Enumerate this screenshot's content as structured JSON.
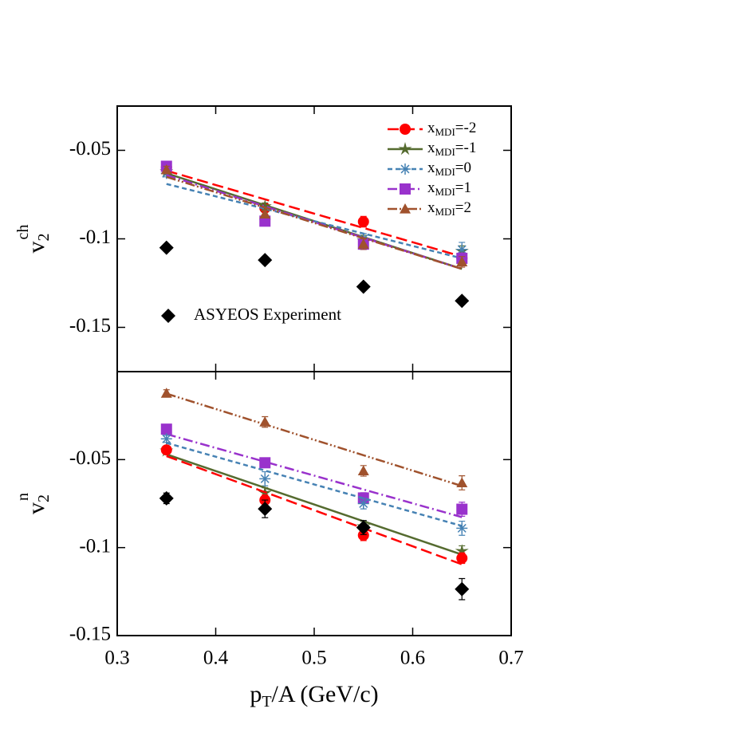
{
  "chart_data": [
    {
      "type": "scatter",
      "y_label": {
        "main": "v",
        "sub": "2",
        "sup": "ch"
      },
      "x": [
        0.35,
        0.45,
        0.55,
        0.65
      ],
      "fit_x": [
        0.35,
        0.65
      ],
      "xlim": [
        0.3,
        0.7
      ],
      "xticks": [
        0.3,
        0.4,
        0.5,
        0.6,
        0.7
      ],
      "ylim": [
        -0.175,
        -0.025
      ],
      "yticks": [
        -0.15,
        -0.1,
        -0.05
      ],
      "legend": "upper right",
      "series": [
        {
          "name": "xMDI=-2",
          "color": "#ff0000",
          "marker": "circle",
          "dash": "dashed",
          "values": [
            -0.0595,
            -0.0826,
            -0.0903,
            -0.111
          ],
          "errors": [
            0.002,
            0.002,
            0.003,
            0.003
          ],
          "fit": [
            -0.0615,
            -0.11
          ]
        },
        {
          "name": "xMDI=-1",
          "color": "#556b2f",
          "marker": "star",
          "dash": "solid",
          "values": [
            -0.062,
            -0.0817,
            -0.101,
            -0.107
          ],
          "errors": [
            0.002,
            0.002,
            0.003,
            0.003
          ],
          "fit": [
            -0.063,
            -0.117
          ]
        },
        {
          "name": "xMDI=0",
          "color": "#4682b4",
          "marker": "asterisk",
          "dash": "short",
          "values": [
            -0.063,
            -0.089,
            -0.1,
            -0.106
          ],
          "errors": [
            0.002,
            0.002,
            0.003,
            0.004
          ],
          "fit": [
            -0.069,
            -0.111
          ]
        },
        {
          "name": "xMDI=1",
          "color": "#9932cc",
          "marker": "square",
          "dash": "dashdot",
          "values": [
            -0.059,
            -0.09,
            -0.103,
            -0.111
          ],
          "errors": [
            0.002,
            0.002,
            0.003,
            0.003
          ],
          "fit": [
            -0.064,
            -0.117
          ]
        },
        {
          "name": "xMDI=2",
          "color": "#a0522d",
          "marker": "triangle",
          "dash": "dashdotdot",
          "values": [
            -0.061,
            -0.086,
            -0.103,
            -0.113
          ],
          "errors": [
            0.002,
            0.002,
            0.003,
            0.003
          ],
          "fit": [
            -0.065,
            -0.117
          ]
        },
        {
          "name": "ASYEOS Experiment",
          "color": "#000000",
          "marker": "diamond",
          "values": [
            -0.105,
            -0.112,
            -0.127,
            -0.135
          ],
          "errors": [
            0.002,
            0.002,
            0.002,
            0.002
          ]
        }
      ]
    },
    {
      "type": "scatter",
      "x_label": [
        "p",
        "T",
        "/A (GeV/c)"
      ],
      "y_label": {
        "main": "v",
        "sub": "2",
        "sup": "n"
      },
      "x": [
        0.35,
        0.45,
        0.55,
        0.65
      ],
      "fit_x": [
        0.35,
        0.65
      ],
      "xlim": [
        0.3,
        0.7
      ],
      "xticks": [
        0.3,
        0.4,
        0.5,
        0.6,
        0.7
      ],
      "ylim": [
        -0.15,
        0
      ],
      "yticks": [
        -0.15,
        -0.1,
        -0.05
      ],
      "series": [
        {
          "color": "#a0522d",
          "marker": "triangle",
          "dash": "dashdotdot",
          "values": [
            -0.0123,
            -0.0286,
            -0.0564,
            -0.0632
          ],
          "errors": [
            0.002,
            0.003,
            0.003,
            0.004
          ],
          "fit": [
            -0.0125,
            -0.065
          ]
        },
        {
          "color": "#9932cc",
          "marker": "square",
          "dash": "dashdot",
          "values": [
            -0.0327,
            -0.0518,
            -0.0718,
            -0.0782
          ],
          "errors": [
            0.002,
            0.002,
            0.003,
            0.004
          ],
          "fit": [
            -0.0355,
            -0.0827
          ]
        },
        {
          "color": "#4682b4",
          "marker": "asterisk",
          "dash": "short",
          "values": [
            -0.0382,
            -0.0609,
            -0.075,
            -0.089
          ],
          "errors": [
            0.002,
            0.004,
            0.003,
            0.004
          ],
          "fit": [
            -0.0405,
            -0.0877
          ]
        },
        {
          "color": "#556b2f",
          "marker": "star",
          "dash": "solid",
          "values": [
            -0.045,
            -0.069,
            -0.088,
            -0.102
          ],
          "errors": [
            0.002,
            0.003,
            0.003,
            0.003
          ],
          "fit": [
            -0.047,
            -0.104
          ]
        },
        {
          "color": "#ff0000",
          "marker": "circle",
          "dash": "dashed",
          "values": [
            -0.0445,
            -0.073,
            -0.093,
            -0.106
          ],
          "errors": [
            0.002,
            0.003,
            0.003,
            0.003
          ],
          "fit": [
            -0.048,
            -0.1095
          ]
        },
        {
          "color": "#000000",
          "marker": "diamond",
          "values": [
            -0.072,
            -0.078,
            -0.0886,
            -0.1236
          ],
          "errors": [
            0.003,
            0.005,
            0.004,
            0.006
          ]
        }
      ]
    }
  ]
}
